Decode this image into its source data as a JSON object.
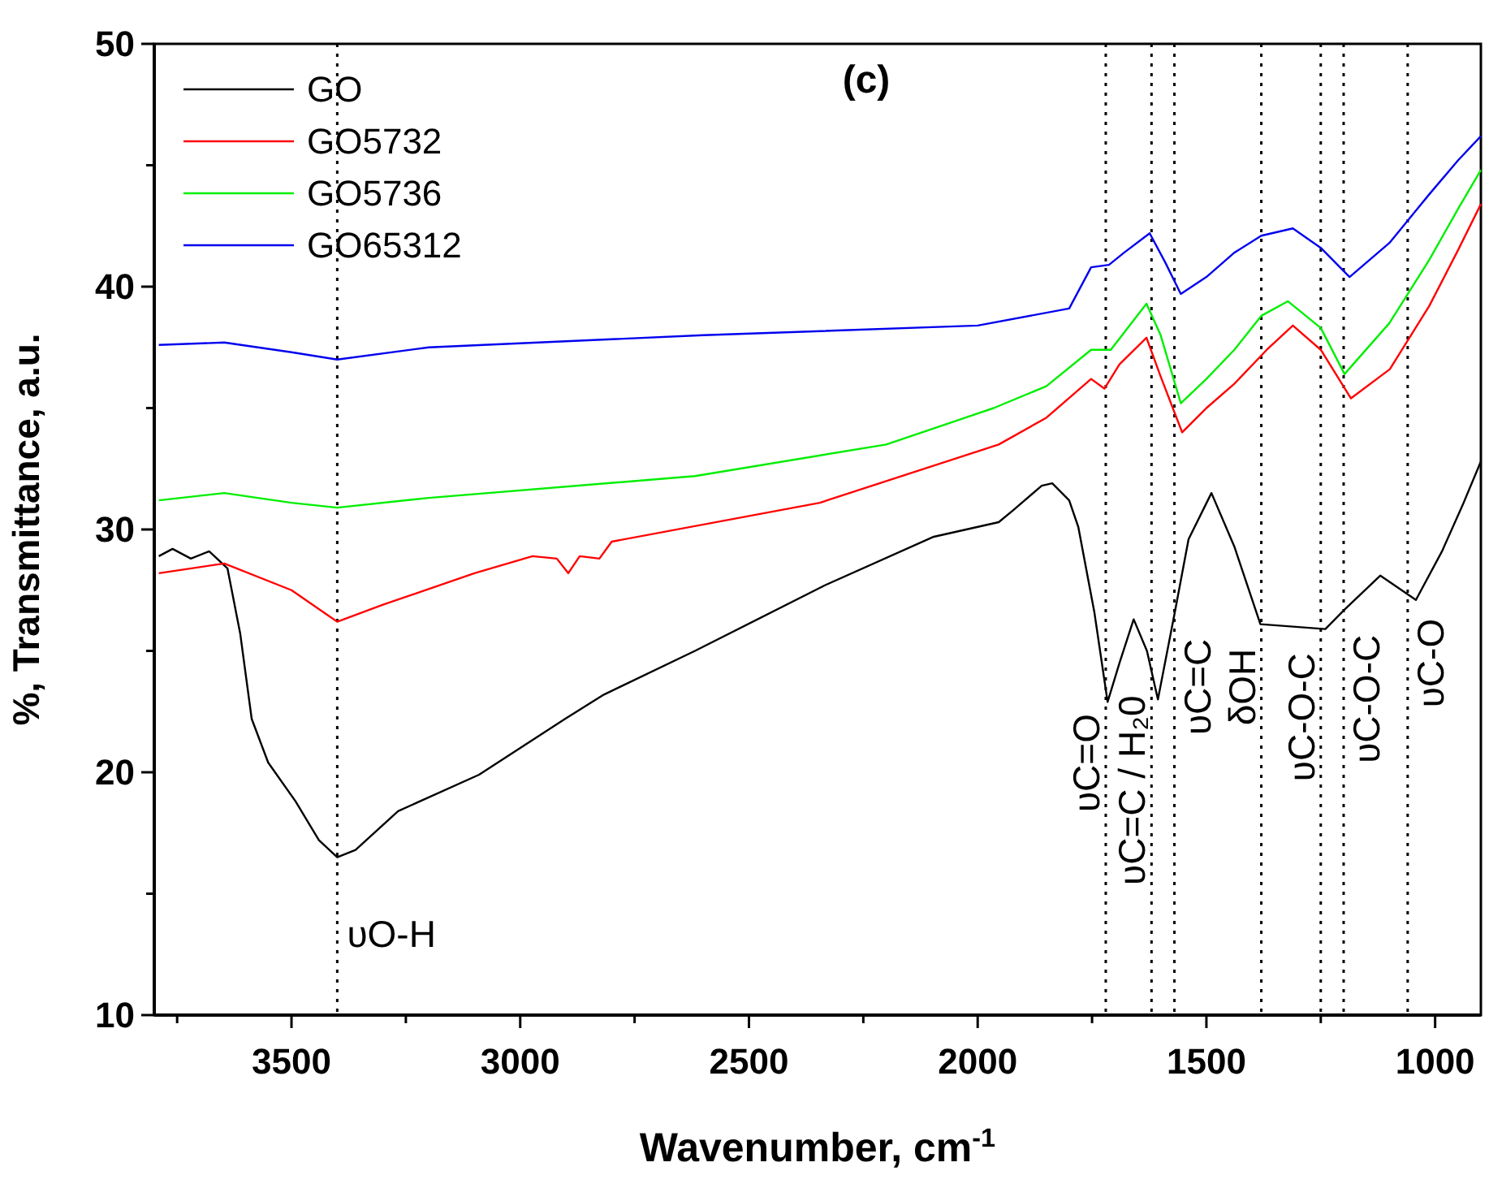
{
  "chart_data": {
    "type": "line",
    "title": "(c)",
    "xlabel": "Wavenumber, cm$^{-1}$",
    "ylabel": "%, Transmittance, a.u.",
    "xlim": [
      3800,
      900
    ],
    "ylim": [
      10,
      50
    ],
    "xticks": [
      {
        "value": 3750,
        "label": null
      },
      3500,
      {
        "value": 3250,
        "label": null
      },
      3000,
      {
        "value": 2750,
        "label": null
      },
      2500,
      {
        "value": 2250,
        "label": null
      },
      2000,
      {
        "value": 1750,
        "label": null
      },
      1500,
      {
        "value": 1250,
        "label": null
      },
      1000
    ],
    "yticks": [
      10,
      {
        "value": 15,
        "label": null
      },
      20,
      {
        "value": 25,
        "label": null
      },
      30,
      {
        "value": 35,
        "label": null
      },
      40,
      {
        "value": 45,
        "label": null
      },
      50
    ],
    "grid": false,
    "legend": "top left",
    "marker": "none",
    "line_style": "solid",
    "series": [
      {
        "name": "GO",
        "color": "#000000",
        "x": [
          3790,
          3760,
          3720,
          3680,
          3640,
          3612,
          3587,
          3551,
          3491,
          3440,
          3400,
          3360,
          3267,
          3090,
          2902,
          2817,
          2618,
          2334,
          2096,
          1954,
          1922,
          1860,
          1837,
          1800,
          1780,
          1745,
          1716,
          1690,
          1659,
          1630,
          1606,
          1570,
          1539,
          1489,
          1439,
          1382,
          1311,
          1240,
          1198,
          1120,
          1042,
          985,
          940,
          900
        ],
        "values": [
          28.9,
          29.2,
          28.8,
          29.1,
          28.4,
          25.7,
          22.2,
          20.4,
          18.8,
          17.2,
          16.5,
          16.8,
          18.4,
          19.9,
          22.2,
          23.2,
          25.0,
          27.7,
          29.7,
          30.3,
          30.8,
          31.8,
          31.9,
          31.2,
          30.1,
          26.6,
          22.9,
          24.5,
          26.3,
          25.0,
          23.0,
          26.5,
          29.6,
          31.5,
          29.3,
          26.1,
          26.0,
          25.9,
          26.7,
          28.1,
          27.1,
          29.1,
          31.0,
          32.8
        ]
      },
      {
        "name": "GO5732",
        "color": "#ff0000",
        "x": [
          3790,
          3647,
          3500,
          3400,
          3300,
          3100,
          2973,
          2920,
          2895,
          2870,
          2827,
          2800,
          2345,
          1954,
          1850,
          1752,
          1723,
          1690,
          1631,
          1600,
          1553,
          1500,
          1439,
          1368,
          1311,
          1250,
          1184,
          1099,
          1013,
          950,
          900
        ],
        "values": [
          28.2,
          28.6,
          27.5,
          26.2,
          26.9,
          28.2,
          28.9,
          28.8,
          28.2,
          28.9,
          28.8,
          29.5,
          31.1,
          33.5,
          34.6,
          36.2,
          35.8,
          36.8,
          37.9,
          36.3,
          34.0,
          35.0,
          36.0,
          37.4,
          38.4,
          37.4,
          35.4,
          36.6,
          39.2,
          41.5,
          43.4
        ]
      },
      {
        "name": "GO5736",
        "color": "#00ee00",
        "x": [
          3790,
          3647,
          3500,
          3400,
          3200,
          2618,
          2200,
          1965,
          1850,
          1752,
          1709,
          1631,
          1600,
          1556,
          1500,
          1439,
          1380,
          1322,
          1250,
          1198,
          1100,
          1013,
          950,
          900
        ],
        "values": [
          31.2,
          31.5,
          31.1,
          30.9,
          31.3,
          32.2,
          33.5,
          35.0,
          35.9,
          37.4,
          37.4,
          39.3,
          38.0,
          35.2,
          36.2,
          37.4,
          38.8,
          39.4,
          38.3,
          36.4,
          38.5,
          41.1,
          43.2,
          44.8
        ]
      },
      {
        "name": "GO65312",
        "color": "#0000ee",
        "x": [
          3790,
          3647,
          3500,
          3400,
          3200,
          2600,
          2000,
          1800,
          1752,
          1713,
          1680,
          1624,
          1590,
          1556,
          1500,
          1439,
          1380,
          1311,
          1250,
          1187,
          1100,
          1013,
          950,
          900
        ],
        "values": [
          37.6,
          37.7,
          37.3,
          37.0,
          37.5,
          38.0,
          38.4,
          39.1,
          40.8,
          40.9,
          41.4,
          42.2,
          41.0,
          39.7,
          40.4,
          41.4,
          42.1,
          42.4,
          41.6,
          40.4,
          41.8,
          43.8,
          45.2,
          46.2
        ]
      }
    ],
    "ref_lines": [
      {
        "axis": "x",
        "value": 3400,
        "line_style": "dotted",
        "label": "υO-H"
      },
      {
        "axis": "x",
        "value": 1720,
        "line_style": "dotted",
        "label": "υC=O"
      },
      {
        "axis": "x",
        "value": 1620,
        "line_style": "dotted",
        "label": "υC=C / H₂0"
      },
      {
        "axis": "x",
        "value": 1570,
        "line_style": "dotted",
        "label": "υC=C"
      },
      {
        "axis": "x",
        "value": 1380,
        "line_style": "dotted",
        "label": "δOH"
      },
      {
        "axis": "x",
        "value": 1250,
        "line_style": "dotted",
        "label": "υC-O-C"
      },
      {
        "axis": "x",
        "value": 1200,
        "line_style": "dotted",
        "label": "υC-O-C"
      },
      {
        "axis": "x",
        "value": 1060,
        "line_style": "dotted",
        "label": "υC-O"
      }
    ]
  }
}
